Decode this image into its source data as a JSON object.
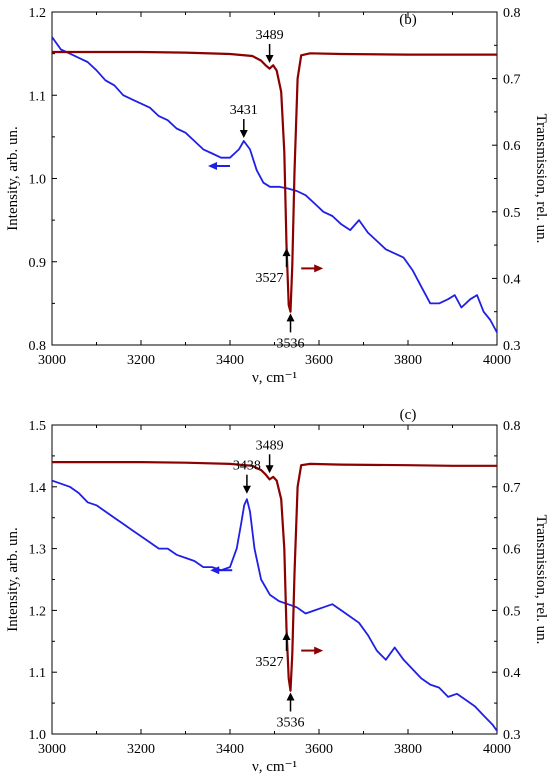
{
  "chart_data": [
    {
      "type": "line",
      "panel_label": "(b)",
      "xlabel": "ν, cm⁻¹",
      "ylabel_left": "Intensity, arb. un.",
      "ylabel_right": "Transmission, rel. un.",
      "xlim": [
        3000,
        4000
      ],
      "ylim_left": [
        0.8,
        1.2
      ],
      "ylim_right": [
        0.3,
        0.8
      ],
      "x_ticks": [
        "3000",
        "3200",
        "3400",
        "3600",
        "3800",
        "4000"
      ],
      "y_ticks_left": [
        "0.8",
        "0.9",
        "1.0",
        "1.1",
        "1.2"
      ],
      "y_ticks_right": [
        "0.3",
        "0.4",
        "0.5",
        "0.6",
        "0.7",
        "0.8"
      ],
      "series": [
        {
          "color": "#1f1fe6",
          "axis": "left",
          "x": [
            3000,
            3020,
            3040,
            3060,
            3080,
            3100,
            3120,
            3140,
            3160,
            3180,
            3200,
            3220,
            3240,
            3260,
            3280,
            3300,
            3320,
            3340,
            3360,
            3380,
            3400,
            3420,
            3431,
            3445,
            3460,
            3475,
            3490,
            3510,
            3530,
            3550,
            3570,
            3590,
            3610,
            3630,
            3650,
            3670,
            3690,
            3710,
            3730,
            3750,
            3770,
            3790,
            3810,
            3830,
            3850,
            3870,
            3890,
            3905,
            3920,
            3940,
            3955,
            3970,
            3985,
            4000
          ],
          "y": [
            1.17,
            1.155,
            1.15,
            1.145,
            1.14,
            1.13,
            1.118,
            1.112,
            1.1,
            1.095,
            1.09,
            1.085,
            1.075,
            1.07,
            1.06,
            1.055,
            1.045,
            1.035,
            1.03,
            1.025,
            1.025,
            1.035,
            1.045,
            1.035,
            1.01,
            0.995,
            0.99,
            0.99,
            0.988,
            0.985,
            0.98,
            0.97,
            0.96,
            0.955,
            0.945,
            0.938,
            0.95,
            0.935,
            0.925,
            0.915,
            0.91,
            0.905,
            0.89,
            0.87,
            0.85,
            0.85,
            0.855,
            0.86,
            0.845,
            0.855,
            0.86,
            0.84,
            0.83,
            0.815
          ]
        },
        {
          "color": "#8b0000",
          "axis": "right",
          "x": [
            3000,
            3100,
            3200,
            3300,
            3400,
            3450,
            3470,
            3480,
            3489,
            3497,
            3505,
            3515,
            3522,
            3527,
            3532,
            3536,
            3540,
            3545,
            3552,
            3560,
            3580,
            3650,
            3800,
            3900,
            4000
          ],
          "y": [
            0.74,
            0.74,
            0.74,
            0.739,
            0.737,
            0.734,
            0.727,
            0.72,
            0.715,
            0.72,
            0.712,
            0.68,
            0.59,
            0.45,
            0.36,
            0.35,
            0.42,
            0.56,
            0.7,
            0.735,
            0.738,
            0.737,
            0.736,
            0.736,
            0.736
          ]
        }
      ],
      "annotations": [
        {
          "text": "3489",
          "x": 3489,
          "axis": "right",
          "y": 0.719,
          "dir": "down"
        },
        {
          "text": "3431",
          "x": 3431,
          "axis": "left",
          "y": 1.045,
          "dir": "down"
        },
        {
          "text": "3527",
          "x": 3527,
          "axis": "right",
          "y": 0.45,
          "dir": "up"
        },
        {
          "text": "3536",
          "x": 3536,
          "axis": "right",
          "y": 0.352,
          "dir": "up"
        }
      ],
      "series_arrows": [
        {
          "color": "#1f1fe6",
          "dir": "left",
          "x": 3400,
          "axis": "left",
          "y": 1.015
        },
        {
          "color": "#8b0000",
          "dir": "right",
          "x": 3560,
          "axis": "right",
          "y": 0.415
        }
      ]
    },
    {
      "type": "line",
      "panel_label": "(c)",
      "xlabel": "ν, cm⁻¹",
      "ylabel_left": "Intensity, arb. un.",
      "ylabel_right": "Transmission, rel. un.",
      "xlim": [
        3000,
        4000
      ],
      "ylim_left": [
        1.0,
        1.5
      ],
      "ylim_right": [
        0.3,
        0.8
      ],
      "x_ticks": [
        "3000",
        "3200",
        "3400",
        "3600",
        "3800",
        "4000"
      ],
      "y_ticks_left": [
        "1.0",
        "1.1",
        "1.2",
        "1.3",
        "1.4",
        "1.5"
      ],
      "y_ticks_right": [
        "0.3",
        "0.4",
        "0.5",
        "0.6",
        "0.7",
        "0.8"
      ],
      "series": [
        {
          "color": "#1f1fe6",
          "axis": "left",
          "x": [
            3000,
            3020,
            3040,
            3060,
            3080,
            3100,
            3120,
            3140,
            3160,
            3180,
            3200,
            3220,
            3240,
            3260,
            3280,
            3300,
            3320,
            3340,
            3360,
            3380,
            3400,
            3415,
            3425,
            3432,
            3438,
            3445,
            3455,
            3470,
            3490,
            3510,
            3530,
            3550,
            3570,
            3590,
            3610,
            3630,
            3650,
            3670,
            3690,
            3710,
            3730,
            3750,
            3770,
            3790,
            3810,
            3830,
            3850,
            3870,
            3890,
            3910,
            3930,
            3950,
            3970,
            3990,
            4000
          ],
          "y": [
            1.41,
            1.405,
            1.4,
            1.39,
            1.375,
            1.37,
            1.36,
            1.35,
            1.34,
            1.33,
            1.32,
            1.31,
            1.3,
            1.3,
            1.29,
            1.285,
            1.28,
            1.27,
            1.27,
            1.265,
            1.27,
            1.3,
            1.34,
            1.37,
            1.38,
            1.36,
            1.3,
            1.25,
            1.225,
            1.215,
            1.21,
            1.205,
            1.195,
            1.2,
            1.205,
            1.21,
            1.2,
            1.19,
            1.18,
            1.16,
            1.135,
            1.12,
            1.14,
            1.12,
            1.105,
            1.09,
            1.08,
            1.075,
            1.06,
            1.065,
            1.055,
            1.045,
            1.03,
            1.015,
            1.005
          ]
        },
        {
          "color": "#8b0000",
          "axis": "right",
          "x": [
            3000,
            3100,
            3200,
            3300,
            3400,
            3450,
            3470,
            3480,
            3489,
            3497,
            3505,
            3515,
            3522,
            3527,
            3532,
            3536,
            3540,
            3545,
            3552,
            3560,
            3580,
            3650,
            3800,
            3900,
            4000
          ],
          "y": [
            0.74,
            0.74,
            0.74,
            0.739,
            0.737,
            0.734,
            0.727,
            0.72,
            0.712,
            0.716,
            0.71,
            0.68,
            0.6,
            0.47,
            0.39,
            0.37,
            0.43,
            0.56,
            0.7,
            0.735,
            0.737,
            0.736,
            0.735,
            0.734,
            0.734
          ]
        }
      ],
      "annotations": [
        {
          "text": "3489",
          "x": 3489,
          "axis": "right",
          "y": 0.717,
          "dir": "down"
        },
        {
          "text": "3438",
          "x": 3438,
          "axis": "left",
          "y": 1.384,
          "dir": "down"
        },
        {
          "text": "3527",
          "x": 3527,
          "axis": "right",
          "y": 0.47,
          "dir": "up"
        },
        {
          "text": "3536",
          "x": 3536,
          "axis": "right",
          "y": 0.372,
          "dir": "up"
        }
      ],
      "series_arrows": [
        {
          "color": "#1f1fe6",
          "dir": "left",
          "x": 3405,
          "axis": "left",
          "y": 1.265
        },
        {
          "color": "#8b0000",
          "dir": "right",
          "x": 3560,
          "axis": "right",
          "y": 0.435
        }
      ]
    }
  ]
}
